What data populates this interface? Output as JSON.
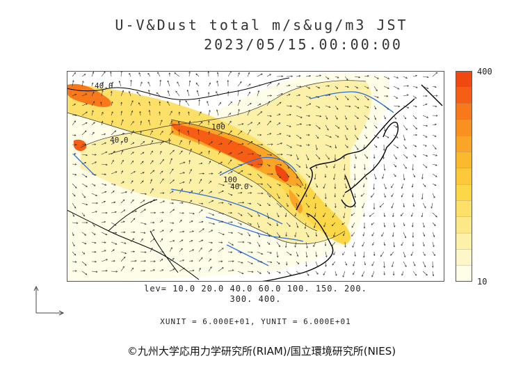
{
  "title": {
    "line1": "U-V&Dust total m/s&ug/m3 JST",
    "line2": "2023/05/15.00:00:00"
  },
  "legend": {
    "max_label": "400",
    "min_label": "10",
    "colors": [
      "#fdfde8",
      "#fdf6c8",
      "#fdf0a8",
      "#fde888",
      "#fde068",
      "#fcd848",
      "#fcc93a",
      "#fbb92e",
      "#fba526",
      "#fa9020",
      "#f9781a",
      "#f55e14",
      "#f0480e"
    ]
  },
  "contour_labels": [
    "40.0",
    "40.0",
    "100",
    "40.0",
    "100"
  ],
  "levels": {
    "line1": "lev= 10.0 20.0 40.0 60.0 100. 150. 200.",
    "line2": "300. 400."
  },
  "units": "XUNIT = 6.000E+01, YUNIT = 6.000E+01",
  "copyright": "©九州大学応用力学研究所(RIAM)/国立環境研究所(NIES)",
  "colors": {
    "land_border": "#000000",
    "rivers": "#2a6fe0",
    "frame": "#555555"
  }
}
